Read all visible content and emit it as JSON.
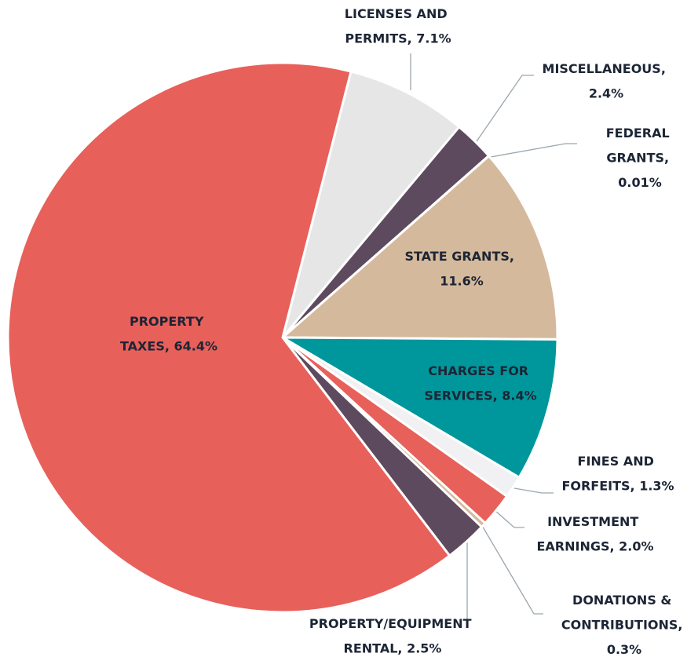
{
  "chart_data": {
    "type": "pie",
    "value_labels": [
      "LICENSES AND PERMITS, 7.1%",
      "MISCELLANEOUS, 2.4%",
      "FEDERAL GRANTS, 0.01%",
      "STATE GRANTS, 11.6%",
      "CHARGES FOR SERVICES, 8.4%",
      "FINES AND FORFEITS, 1.3%",
      "INVESTMENT EARNINGS, 2.0%",
      "DONATIONS & CONTRIBUTIONS, 0.3%",
      "PROPERTY/EQUIPMENT RENTAL, 2.5%",
      "PROPERTY TAXES, 64.4%"
    ],
    "values": [
      7.1,
      2.4,
      0.01,
      11.6,
      8.4,
      1.3,
      2.0,
      0.3,
      2.5,
      64.4
    ],
    "colors": [
      "#e6e6e6",
      "#5e4a5e",
      "#e8c9a8",
      "#d5b99c",
      "#00979c",
      "#f1f1f3",
      "#e8605a",
      "#d5b99c",
      "#5e4a5e",
      "#e8605a"
    ]
  }
}
